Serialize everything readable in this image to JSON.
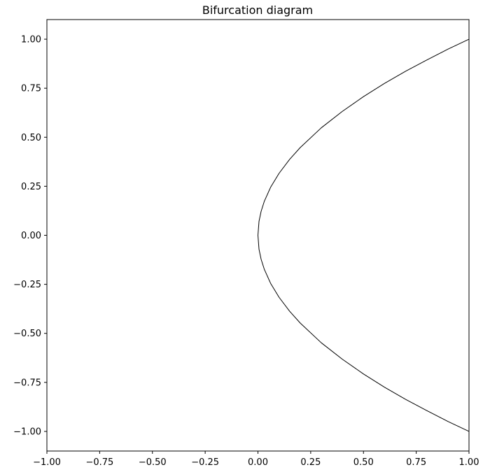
{
  "chart_data": {
    "type": "line",
    "title": "Bifurcation diagram",
    "xlabel": "",
    "ylabel": "",
    "xlim": [
      -1.0,
      1.0
    ],
    "ylim": [
      -1.1,
      1.1
    ],
    "xticks": [
      "−1.00",
      "−0.75",
      "−0.50",
      "−0.25",
      "0.00",
      "0.25",
      "0.50",
      "0.75",
      "1.00"
    ],
    "xtick_values": [
      -1.0,
      -0.75,
      -0.5,
      -0.25,
      0.0,
      0.25,
      0.5,
      0.75,
      1.0
    ],
    "yticks": [
      "1.00",
      "0.75",
      "0.50",
      "0.25",
      "0.00",
      "−0.25",
      "−0.50",
      "−0.75",
      "−1.00"
    ],
    "ytick_values": [
      1.0,
      0.75,
      0.5,
      0.25,
      0.0,
      -0.25,
      -0.5,
      -0.75,
      -1.0
    ],
    "grid": false,
    "legend": "none",
    "line_color": "#000000",
    "series": [
      {
        "x": [
          1.0,
          0.9,
          0.8,
          0.7,
          0.6,
          0.5,
          0.4,
          0.3,
          0.2,
          0.15,
          0.1,
          0.06,
          0.03,
          0.015,
          0.005,
          0.0,
          0.005,
          0.015,
          0.03,
          0.06,
          0.1,
          0.15,
          0.2,
          0.3,
          0.4,
          0.5,
          0.6,
          0.7,
          0.8,
          0.9,
          1.0
        ],
        "y": [
          1.0,
          0.949,
          0.894,
          0.837,
          0.775,
          0.707,
          0.632,
          0.548,
          0.447,
          0.387,
          0.316,
          0.245,
          0.173,
          0.122,
          0.071,
          0.0,
          -0.071,
          -0.122,
          -0.173,
          -0.245,
          -0.316,
          -0.387,
          -0.447,
          -0.548,
          -0.632,
          -0.707,
          -0.775,
          -0.837,
          -0.894,
          -0.949,
          -1.0
        ]
      }
    ]
  }
}
